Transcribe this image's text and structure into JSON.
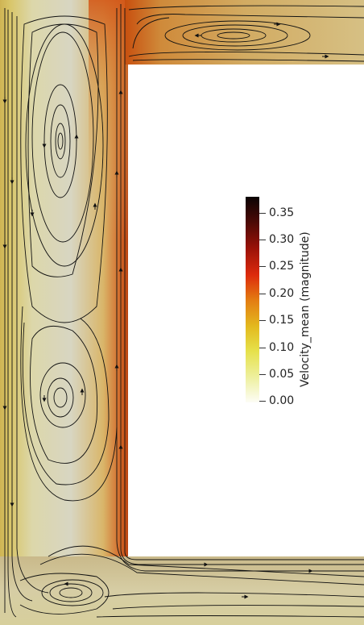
{
  "colorbar": {
    "title": "Velocity_mean (magnitude)",
    "ticks": [
      "0.35",
      "0.30",
      "0.25",
      "0.20",
      "0.15",
      "0.10",
      "0.05",
      "0.00"
    ],
    "min": 0.0,
    "max": 0.38,
    "gradient": [
      "#fdfdf6",
      "#eef0a0",
      "#e6e14a",
      "#e3b91e",
      "#e37b12",
      "#dd2a0c",
      "#9a1208",
      "#4a0a06",
      "#0b0303"
    ]
  },
  "colors": {
    "fluid_low": "#d9d7c4",
    "fluid_mid": "#dcd99a",
    "fluid_warm": "#d9a15a",
    "fluid_hot": "#d44a1c",
    "streamline": "#111111",
    "obstacle": "#ffffff"
  }
}
